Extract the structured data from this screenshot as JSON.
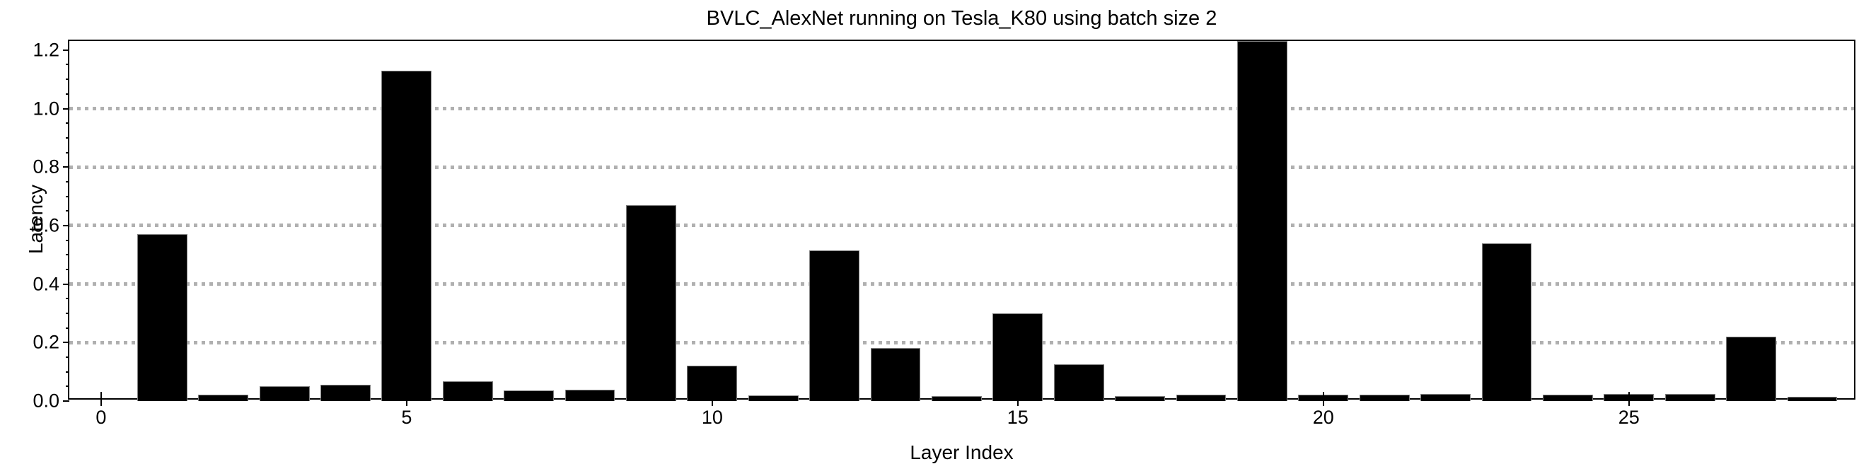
{
  "chart_data": {
    "type": "bar",
    "title": "BVLC_AlexNet running on Tesla_K80 using batch size 2",
    "xlabel": "Layer Index",
    "ylabel": "Latency",
    "x": [
      0,
      1,
      2,
      3,
      4,
      5,
      6,
      7,
      8,
      9,
      10,
      11,
      12,
      13,
      14,
      15,
      16,
      17,
      18,
      19,
      20,
      21,
      22,
      23,
      24,
      25,
      26,
      27,
      28
    ],
    "values": [
      0.0,
      0.57,
      0.021,
      0.051,
      0.056,
      1.13,
      0.068,
      0.037,
      0.039,
      0.67,
      0.12,
      0.019,
      0.515,
      0.182,
      0.018,
      0.3,
      0.126,
      0.016,
      0.021,
      1.23,
      0.022,
      0.022,
      0.025,
      0.54,
      0.021,
      0.024,
      0.024,
      0.22,
      0.015
    ],
    "xticks": [
      0,
      5,
      10,
      15,
      20,
      25
    ],
    "ytick_labels": [
      "0.0",
      "0.2",
      "0.4",
      "0.6",
      "0.8",
      "1.0",
      "1.2"
    ],
    "ytick_values": [
      0.0,
      0.2,
      0.4,
      0.6,
      0.8,
      1.0,
      1.2
    ],
    "y_minor_tick_step": 0.05,
    "grid_y_values": [
      0.2,
      0.4,
      0.6,
      0.8,
      1.0
    ],
    "grid_style": "dotted",
    "grid_on": true,
    "legend": null,
    "xlim": [
      -0.52,
      28.73
    ],
    "ylim": [
      0,
      1.231
    ],
    "colors": {
      "bar_fill": "#000000",
      "bar_edge": "#7f7f7f",
      "grid": "#b0b0b0",
      "axis": "#000000",
      "background": "#ffffff"
    }
  }
}
